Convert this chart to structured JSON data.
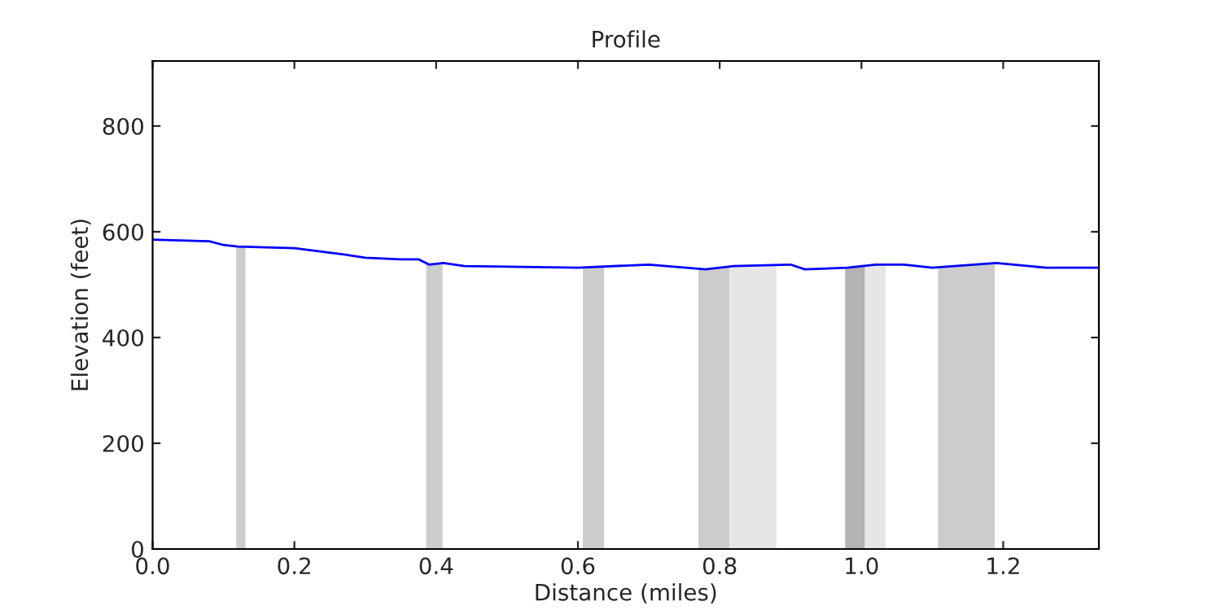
{
  "chart_data": {
    "type": "line",
    "title": "Profile",
    "xlabel": "Distance (miles)",
    "ylabel": "Elevation (feet)",
    "xlim": [
      0,
      1.335
    ],
    "ylim": [
      0,
      923
    ],
    "xticks": [
      {
        "value": 0,
        "label": "0.0"
      },
      0.2,
      0.4,
      0.6,
      0.8,
      {
        "value": 1,
        "label": "1.0"
      },
      1.2
    ],
    "yticks": [
      0,
      200,
      400,
      600,
      800
    ],
    "grid": false,
    "series": [
      {
        "type": "area",
        "color": "#cccccc",
        "x": [
          0.118,
          0.131
        ],
        "values": [
          573,
          573
        ]
      },
      {
        "type": "area",
        "color": "#cccccc",
        "x": [
          0.386,
          0.409
        ],
        "values": [
          540,
          541
        ]
      },
      {
        "type": "area",
        "color": "#cccccc",
        "x": [
          0.607,
          0.637
        ],
        "values": [
          532,
          534
        ]
      },
      {
        "type": "area",
        "color": "#cccccc",
        "x": [
          0.77,
          0.814
        ],
        "values": [
          530,
          533
        ]
      },
      {
        "type": "area",
        "color": "#e6e6e6",
        "x": [
          0.814,
          0.88
        ],
        "values": [
          533,
          537
        ]
      },
      {
        "type": "area",
        "color": "#b3b3b3",
        "x": [
          0.977,
          1.005
        ],
        "values": [
          532,
          536
        ]
      },
      {
        "type": "area",
        "color": "#e6e6e6",
        "x": [
          1.005,
          1.034
        ],
        "values": [
          536,
          538
        ]
      },
      {
        "type": "area",
        "color": "#cccccc",
        "x": [
          1.108,
          1.188
        ],
        "values": [
          532,
          541
        ]
      },
      {
        "color": "#0000ff",
        "x": [
          0,
          0.08,
          0.1,
          0.12,
          0.2,
          0.27,
          0.3,
          0.35,
          0.375,
          0.39,
          0.41,
          0.44,
          0.6,
          0.7,
          0.78,
          0.82,
          0.9,
          0.92,
          0.98,
          1.02,
          1.06,
          1.1,
          1.19,
          1.26,
          1.335
        ],
        "values": [
          585,
          582,
          575,
          572,
          569,
          557,
          551,
          548,
          548,
          538,
          541,
          535,
          532,
          538,
          529,
          535,
          538,
          529,
          532,
          538,
          538,
          532,
          541,
          532,
          532
        ]
      }
    ]
  }
}
